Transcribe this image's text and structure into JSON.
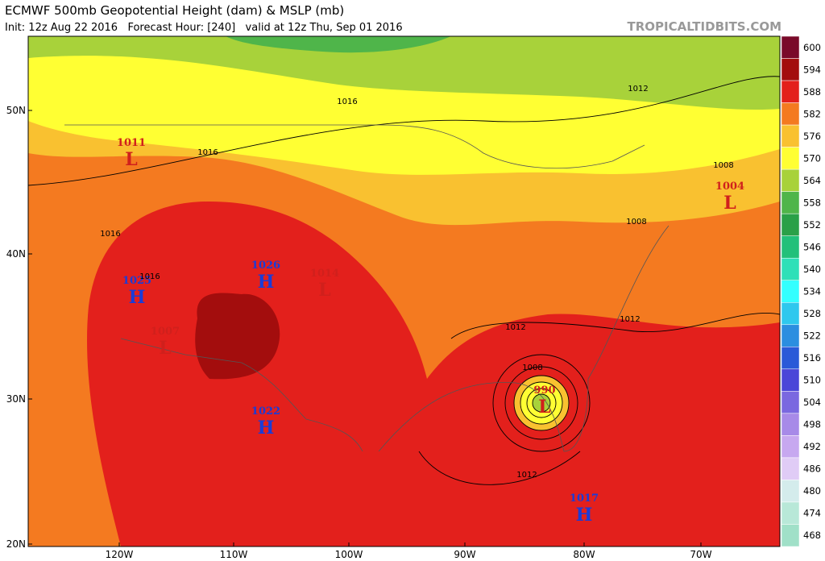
{
  "header": {
    "title": "ECMWF 500mb Geopotential Height (dam) & MSLP (mb)",
    "subtitle": "Init: 12z Aug 22 2016   Forecast Hour: [240]   valid at 12z Thu, Sep 01 2016",
    "credit": "TROPICALTIDBITS.COM"
  },
  "axes": {
    "lat_labels": [
      "50N",
      "40N",
      "30N",
      "20N"
    ],
    "lon_labels": [
      "120W",
      "110W",
      "100W",
      "90W",
      "80W",
      "70W"
    ]
  },
  "colorbar": {
    "levels": [
      {
        "label": "600",
        "color": "#7a0a2a"
      },
      {
        "label": "594",
        "color": "#a30d0d"
      },
      {
        "label": "588",
        "color": "#e3201c"
      },
      {
        "label": "582",
        "color": "#f47a20"
      },
      {
        "label": "576",
        "color": "#f9c130"
      },
      {
        "label": "570",
        "color": "#ffff33"
      },
      {
        "label": "564",
        "color": "#a8d23a"
      },
      {
        "label": "558",
        "color": "#4fb54a"
      },
      {
        "label": "552",
        "color": "#2aa048"
      },
      {
        "label": "546",
        "color": "#22c07a"
      },
      {
        "label": "540",
        "color": "#2ee0b8"
      },
      {
        "label": "534",
        "color": "#33ffff"
      },
      {
        "label": "528",
        "color": "#2ec8ee"
      },
      {
        "label": "522",
        "color": "#2b8ee0"
      },
      {
        "label": "516",
        "color": "#2a5ad8"
      },
      {
        "label": "510",
        "color": "#4a46d8"
      },
      {
        "label": "504",
        "color": "#7a68e0"
      },
      {
        "label": "498",
        "color": "#a78ae8"
      },
      {
        "label": "492",
        "color": "#c7a8f0"
      },
      {
        "label": "486",
        "color": "#e0ccf6"
      },
      {
        "label": "480",
        "color": "#d4ecec"
      },
      {
        "label": "474",
        "color": "#b8e8d8"
      },
      {
        "label": "468",
        "color": "#a0e0c8"
      }
    ]
  },
  "pressure_centers": [
    {
      "value": "1011",
      "letter": "L"
    },
    {
      "value": "1025",
      "letter": "H"
    },
    {
      "value": "1007",
      "letter": "L"
    },
    {
      "value": "1026",
      "letter": "H"
    },
    {
      "value": "1014",
      "letter": "L"
    },
    {
      "value": "1022",
      "letter": "H"
    },
    {
      "value": "990",
      "letter": "L"
    },
    {
      "value": "1004",
      "letter": "L"
    },
    {
      "value": "1017",
      "letter": "H"
    }
  ],
  "contour_labels": [
    "1016",
    "1012",
    "1016",
    "1016",
    "1016",
    "1008",
    "1008",
    "1012",
    "1012",
    "1008",
    "1012"
  ]
}
